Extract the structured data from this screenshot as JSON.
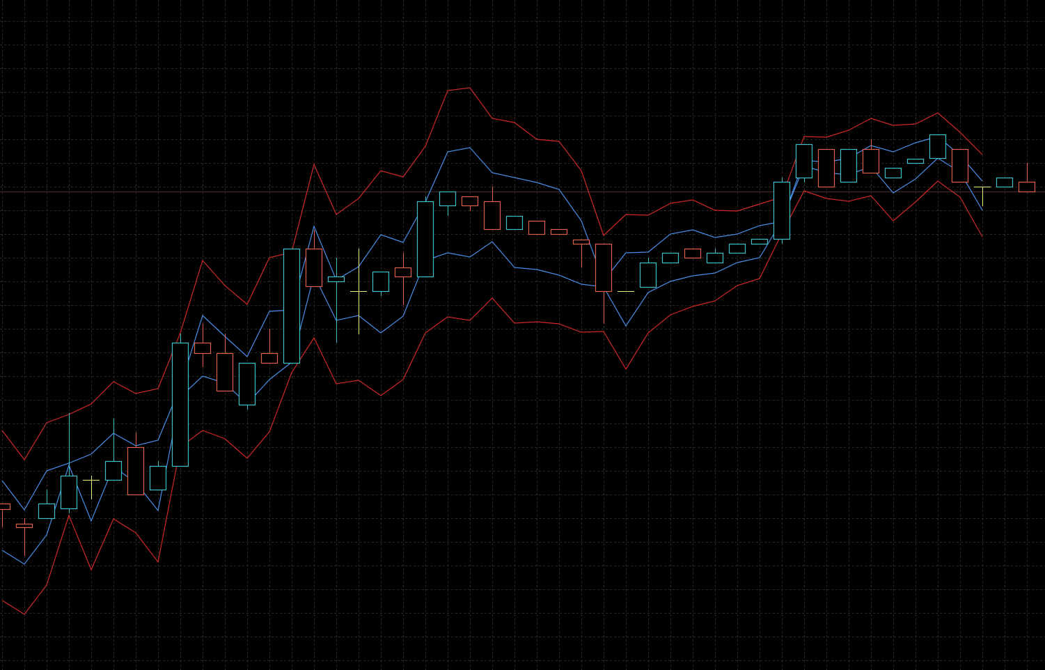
{
  "chart_data": {
    "type": "candlestick",
    "grid": true,
    "background": "#000000",
    "colors": {
      "bull": "#40c0c8",
      "bear": "#e0604a",
      "doji": "#f0f080",
      "inner_band": "#4a8ee8",
      "outer_band": "#d02828",
      "grid": "#2a2a2a",
      "price_line": "#4a2a2a"
    },
    "last_price": 72.5,
    "ylim": [
      3.8,
      100
    ],
    "candles_ohlc": [
      [
        27.7,
        27.7,
        24.3,
        26.9
      ],
      [
        24.8,
        25.6,
        20.2,
        24.3
      ],
      [
        25.6,
        29.7,
        25.6,
        27.7
      ],
      [
        27.0,
        40.7,
        26.3,
        31.7
      ],
      [
        31.1,
        31.7,
        28.3,
        31.1
      ],
      [
        31.1,
        39.9,
        31.1,
        33.8
      ],
      [
        35.8,
        37.9,
        29.0,
        29.0
      ],
      [
        29.7,
        33.8,
        29.7,
        33.1
      ],
      [
        33.1,
        52.1,
        33.1,
        50.8
      ],
      [
        50.8,
        53.5,
        47.3,
        49.3
      ],
      [
        49.3,
        52.1,
        43.9,
        43.9
      ],
      [
        41.9,
        47.9,
        41.2,
        47.9
      ],
      [
        49.3,
        52.8,
        47.9,
        47.9
      ],
      [
        47.9,
        64.3,
        47.9,
        64.3
      ],
      [
        64.3,
        67.0,
        58.9,
        58.9
      ],
      [
        59.6,
        63.0,
        50.8,
        60.3
      ],
      [
        58.2,
        64.3,
        52.0,
        58.2
      ],
      [
        58.2,
        61.0,
        57.5,
        61.0
      ],
      [
        61.6,
        63.7,
        56.2,
        60.3
      ],
      [
        60.3,
        71.8,
        60.3,
        71.1
      ],
      [
        70.5,
        72.5,
        69.0,
        72.5
      ],
      [
        71.8,
        71.8,
        69.7,
        70.5
      ],
      [
        71.1,
        73.2,
        67.1,
        67.1
      ],
      [
        67.1,
        69.0,
        67.1,
        69.0
      ],
      [
        68.3,
        68.3,
        66.4,
        66.4
      ],
      [
        67.1,
        67.1,
        66.4,
        66.4
      ],
      [
        65.6,
        65.6,
        61.6,
        65.0
      ],
      [
        65.0,
        65.0,
        53.5,
        58.2
      ],
      [
        58.2,
        58.2,
        58.2,
        58.2
      ],
      [
        58.8,
        63.0,
        58.8,
        62.3
      ],
      [
        62.3,
        63.7,
        62.3,
        63.7
      ],
      [
        64.3,
        64.3,
        63.0,
        63.0
      ],
      [
        62.3,
        64.3,
        62.3,
        63.7
      ],
      [
        63.7,
        65.0,
        63.7,
        65.0
      ],
      [
        65.0,
        65.7,
        65.0,
        65.7
      ],
      [
        65.7,
        74.5,
        65.0,
        73.9
      ],
      [
        74.5,
        79.3,
        73.8,
        79.3
      ],
      [
        78.6,
        78.6,
        73.2,
        73.2
      ],
      [
        73.9,
        78.6,
        73.9,
        78.6
      ],
      [
        78.6,
        80.0,
        75.2,
        75.2
      ],
      [
        74.5,
        75.9,
        74.5,
        75.9
      ],
      [
        76.6,
        77.2,
        76.6,
        77.2
      ],
      [
        77.3,
        80.7,
        77.3,
        80.7
      ],
      [
        78.6,
        78.6,
        73.9,
        73.9
      ],
      [
        73.2,
        73.2,
        70.4,
        73.2
      ],
      [
        73.2,
        74.5,
        73.2,
        74.5
      ],
      [
        73.9,
        76.6,
        72.5,
        72.5
      ]
    ],
    "bands": {
      "outer_upper": [
        38.2,
        34.0,
        39.3,
        40.5,
        42.0,
        45.2,
        43.5,
        44.2,
        52.2,
        62.6,
        59.0,
        56.3,
        63.0,
        63.8,
        76.4,
        69.2,
        71.5,
        75.5,
        74.6,
        79.0,
        87.0,
        87.4,
        83.0,
        82.4,
        80.0,
        79.7,
        75.5,
        66.2,
        69.2,
        69.1,
        70.8,
        71.3,
        69.8,
        69.7,
        70.7,
        71.7,
        80.4,
        80.3,
        81.3,
        83.0,
        82.0,
        82.2,
        83.8,
        81.0,
        77.8
      ],
      "inner_upper": [
        31.0,
        26.8,
        32.4,
        33.5,
        34.8,
        37.8,
        36.0,
        36.8,
        44.5,
        54.7,
        51.7,
        48.8,
        55.3,
        55.5,
        67.5,
        59.8,
        61.7,
        66.3,
        65.2,
        71.0,
        78.2,
        78.8,
        75.2,
        74.5,
        73.8,
        72.8,
        68.3,
        59.7,
        63.7,
        63.8,
        66.4,
        67.0,
        65.9,
        66.4,
        67.6,
        68.2,
        77.0,
        76.7,
        77.3,
        79.1,
        78.2,
        79.5,
        80.4,
        77.7,
        74.0
      ],
      "inner_lower": [
        21.0,
        19.0,
        23.2,
        33.2,
        25.2,
        33.0,
        30.7,
        26.7,
        43.0,
        46.0,
        45.0,
        42.0,
        45.5,
        48.0,
        60.5,
        54.0,
        54.7,
        52.2,
        54.6,
        62.6,
        63.7,
        63.1,
        65.3,
        61.6,
        61.3,
        60.5,
        59.2,
        58.8,
        53.2,
        58.0,
        59.6,
        60.4,
        60.8,
        62.3,
        63.0,
        68.3,
        76.2,
        75.2,
        74.9,
        76.1,
        72.3,
        74.3,
        77.3,
        75.3,
        69.8
      ],
      "outer_lower": [
        13.8,
        11.8,
        16.0,
        26.0,
        18.2,
        25.5,
        23.5,
        19.3,
        35.8,
        38.2,
        37.0,
        34.2,
        38.0,
        46.5,
        51.5,
        44.9,
        45.4,
        43.2,
        45.5,
        52.2,
        54.5,
        54.0,
        57.2,
        53.6,
        53.8,
        53.5,
        52.3,
        52.4,
        47.0,
        52.2,
        54.8,
        56.0,
        56.8,
        59.0,
        60.0,
        66.5,
        72.6,
        71.5,
        71.1,
        71.9,
        68.3,
        71.0,
        74.0,
        71.7,
        66.0
      ]
    }
  }
}
